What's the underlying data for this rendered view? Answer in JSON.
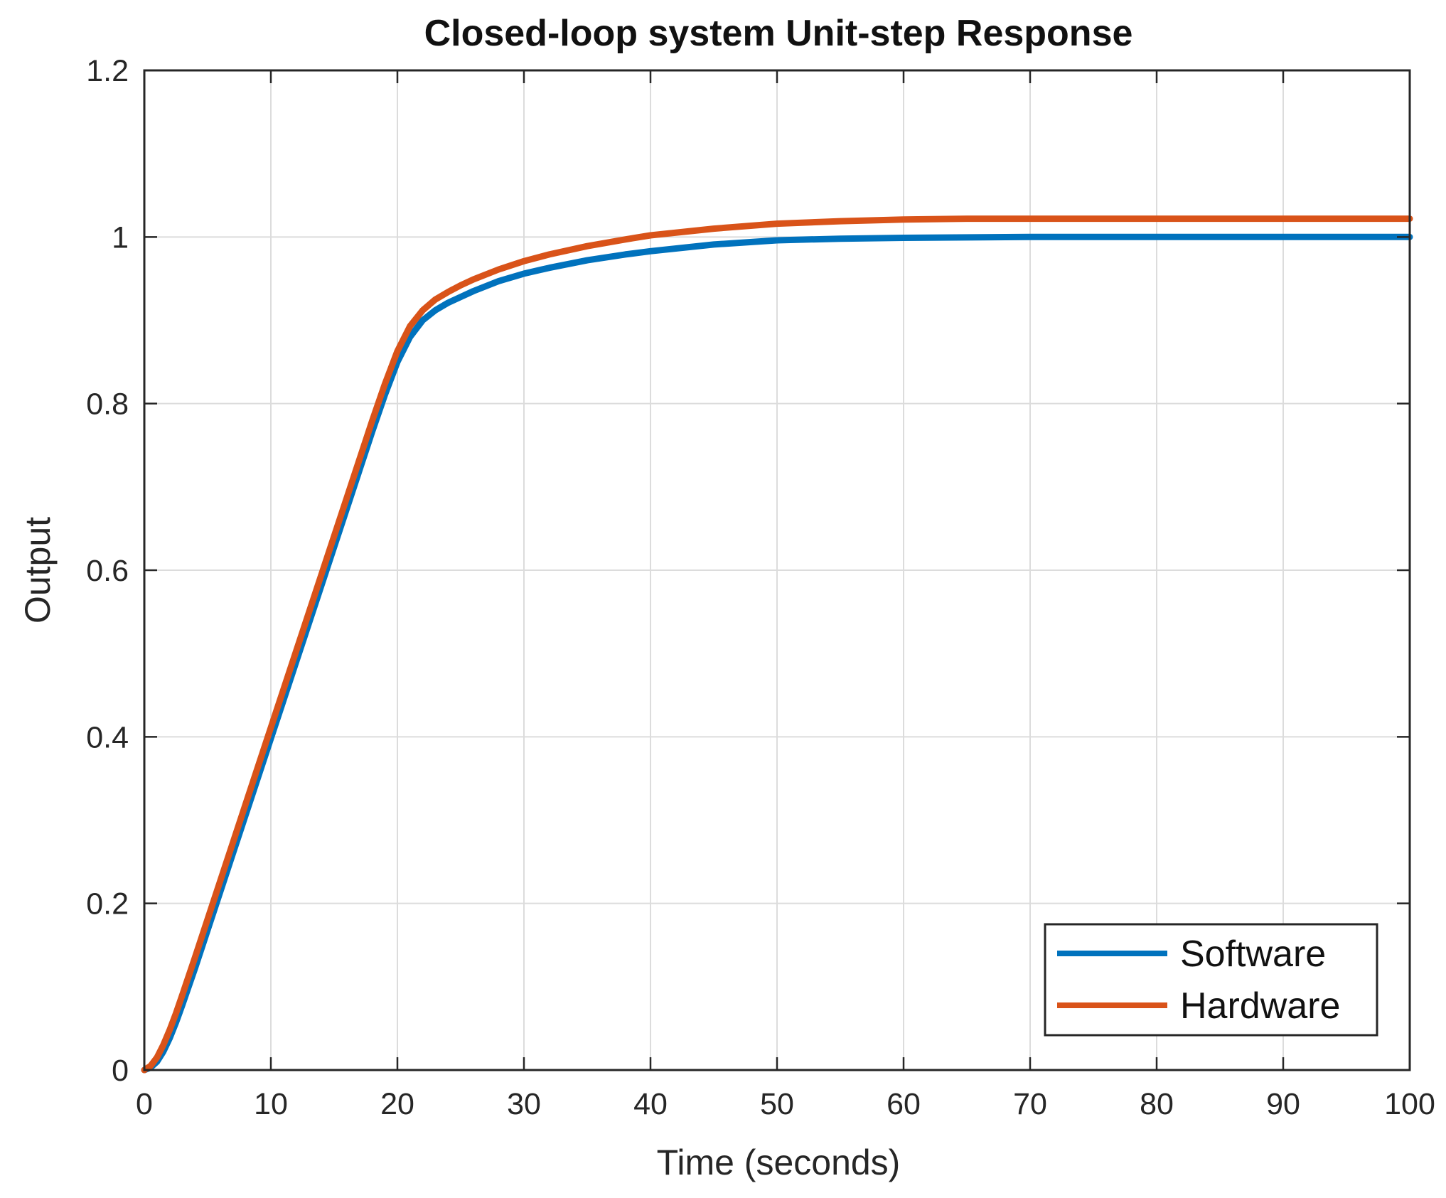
{
  "chart_data": {
    "type": "line",
    "title": "Closed-loop system Unit-step Response",
    "xlabel": "Time (seconds)",
    "ylabel": "Output",
    "xlim": [
      0,
      100
    ],
    "ylim": [
      0,
      1.2
    ],
    "xticks": [
      "0",
      "10",
      "20",
      "30",
      "40",
      "50",
      "60",
      "70",
      "80",
      "90",
      "100"
    ],
    "yticks": [
      "0",
      "0.2",
      "0.4",
      "0.6",
      "0.8",
      "1",
      "1.2"
    ],
    "grid": true,
    "legend_position": "bottom-right",
    "series": [
      {
        "name": "Software",
        "color": "#0072BD",
        "x": [
          0,
          0.5,
          1,
          1.5,
          2,
          2.5,
          3,
          4,
          5,
          6,
          7,
          8,
          9,
          10,
          11,
          12,
          13,
          14,
          15,
          16,
          17,
          18,
          19,
          20,
          21,
          22,
          23,
          24,
          25,
          26,
          28,
          30,
          32,
          35,
          38,
          40,
          45,
          50,
          55,
          60,
          70,
          80,
          90,
          100
        ],
        "y": [
          0,
          0.003,
          0.01,
          0.022,
          0.038,
          0.057,
          0.078,
          0.122,
          0.168,
          0.214,
          0.26,
          0.306,
          0.352,
          0.398,
          0.444,
          0.49,
          0.536,
          0.582,
          0.628,
          0.674,
          0.72,
          0.766,
          0.81,
          0.85,
          0.88,
          0.9,
          0.912,
          0.921,
          0.928,
          0.935,
          0.947,
          0.956,
          0.963,
          0.972,
          0.979,
          0.983,
          0.991,
          0.996,
          0.998,
          0.999,
          1.0,
          1.0,
          1.0,
          1.0
        ]
      },
      {
        "name": "Hardware",
        "color": "#D95319",
        "x": [
          0,
          0.5,
          1,
          1.5,
          2,
          2.5,
          3,
          4,
          5,
          6,
          7,
          8,
          9,
          10,
          11,
          12,
          13,
          14,
          15,
          16,
          17,
          18,
          19,
          20,
          21,
          22,
          23,
          24,
          25,
          26,
          28,
          30,
          32,
          35,
          38,
          40,
          45,
          50,
          55,
          60,
          65,
          70,
          80,
          90,
          100
        ],
        "y": [
          0,
          0.005,
          0.015,
          0.03,
          0.048,
          0.068,
          0.09,
          0.135,
          0.181,
          0.227,
          0.273,
          0.319,
          0.365,
          0.411,
          0.457,
          0.503,
          0.549,
          0.595,
          0.641,
          0.687,
          0.733,
          0.779,
          0.823,
          0.863,
          0.893,
          0.912,
          0.925,
          0.934,
          0.942,
          0.949,
          0.961,
          0.971,
          0.979,
          0.989,
          0.997,
          1.002,
          1.01,
          1.016,
          1.019,
          1.021,
          1.022,
          1.022,
          1.022,
          1.022,
          1.022
        ]
      }
    ]
  }
}
